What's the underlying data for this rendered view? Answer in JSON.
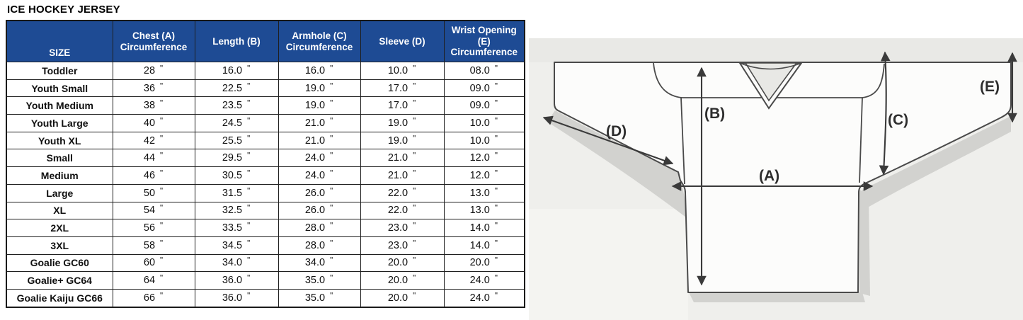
{
  "title": "ICE HOCKEY JERSEY",
  "colors": {
    "header_bg": "#1e4b94",
    "header_text": "#ffffff",
    "table_border": "#1f1f1f",
    "title_text": "#000000",
    "diagram_line": "#3a3a3a",
    "diagram_shadow": "#d2d2cf",
    "diagram_background": "#efefec"
  },
  "table": {
    "unit": "\"",
    "columns": [
      {
        "key": "size",
        "label_lines": [
          "SIZE"
        ]
      },
      {
        "key": "chest",
        "label_lines": [
          "Chest (A)",
          "Circumference"
        ]
      },
      {
        "key": "length",
        "label_lines": [
          "Length (B)"
        ]
      },
      {
        "key": "armhole",
        "label_lines": [
          "Armhole (C)",
          "Circumference"
        ]
      },
      {
        "key": "sleeve",
        "label_lines": [
          "Sleeve (D)"
        ]
      },
      {
        "key": "wrist",
        "label_lines": [
          "Wrist Opening",
          "(E)",
          "Circumference"
        ]
      }
    ],
    "rows": [
      {
        "size": "Toddler",
        "values": [
          "28",
          "16.0",
          "16.0",
          "10.0",
          "08.0"
        ]
      },
      {
        "size": "Youth Small",
        "values": [
          "36",
          "22.5",
          "19.0",
          "17.0",
          "09.0"
        ]
      },
      {
        "size": "Youth Medium",
        "values": [
          "38",
          "23.5",
          "19.0",
          "17.0",
          "09.0"
        ]
      },
      {
        "size": "Youth Large",
        "values": [
          "40",
          "24.5",
          "21.0",
          "19.0",
          "10.0"
        ]
      },
      {
        "size": "Youth XL",
        "values": [
          "42",
          "25.5",
          "21.0",
          "19.0",
          "10.0"
        ]
      },
      {
        "size": "Small",
        "values": [
          "44",
          "29.5",
          "24.0",
          "21.0",
          "12.0"
        ]
      },
      {
        "size": "Medium",
        "values": [
          "46",
          "30.5",
          "24.0",
          "21.0",
          "12.0"
        ]
      },
      {
        "size": "Large",
        "values": [
          "50",
          "31.5",
          "26.0",
          "22.0",
          "13.0"
        ]
      },
      {
        "size": "XL",
        "values": [
          "54",
          "32.5",
          "26.0",
          "22.0",
          "13.0"
        ]
      },
      {
        "size": "2XL",
        "values": [
          "56",
          "33.5",
          "28.0",
          "23.0",
          "14.0"
        ]
      },
      {
        "size": "3XL",
        "values": [
          "58",
          "34.5",
          "28.0",
          "23.0",
          "14.0"
        ]
      },
      {
        "size": "Goalie GC60",
        "values": [
          "60",
          "34.0",
          "34.0",
          "20.0",
          "20.0"
        ]
      },
      {
        "size": "Goalie+ GC64",
        "values": [
          "64",
          "36.0",
          "35.0",
          "20.0",
          "24.0"
        ]
      },
      {
        "size": "Goalie Kaiju GC66",
        "values": [
          "66",
          "36.0",
          "35.0",
          "20.0",
          "24.0"
        ]
      }
    ]
  },
  "diagram": {
    "labels": {
      "A": "(A)",
      "B": "(B)",
      "C": "(C)",
      "D": "(D)",
      "E": "(E)"
    }
  }
}
